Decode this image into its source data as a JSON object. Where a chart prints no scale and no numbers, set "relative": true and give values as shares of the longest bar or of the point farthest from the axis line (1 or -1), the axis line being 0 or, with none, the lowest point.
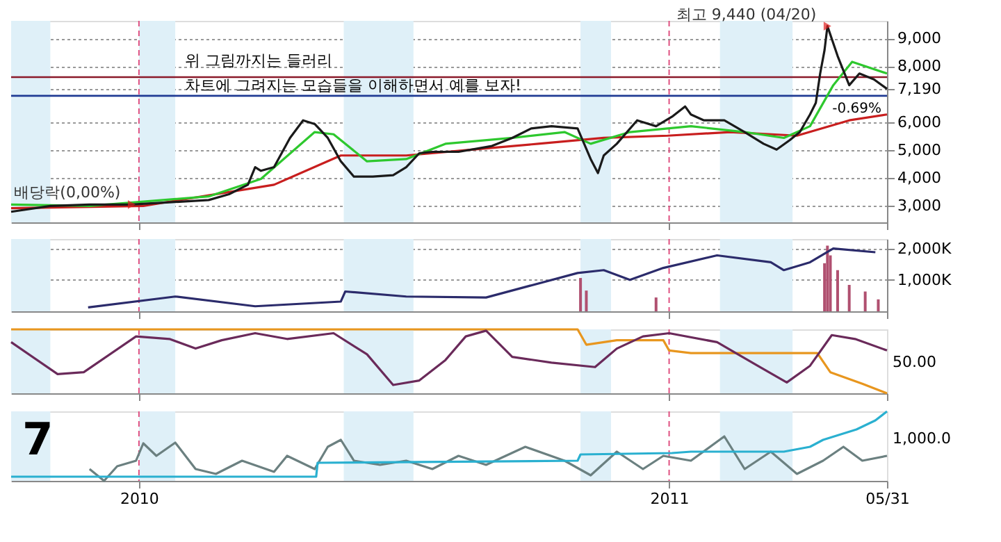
{
  "chart_data": [
    {
      "type": "line",
      "xlim": [
        "2009-10-05",
        "2011-05-31"
      ],
      "xticks": [
        {
          "value": "2010-01-01",
          "label": null
        },
        {
          "value": "2011-01-01",
          "label": null
        },
        {
          "value": "2011-05-31",
          "label": null
        }
      ],
      "ylim": [
        2400,
        9630
      ],
      "yticks": [
        {
          "value": 3000,
          "label": "3,000"
        },
        {
          "value": 4000,
          "label": "4,000"
        },
        {
          "value": 5000,
          "label": "5,000"
        },
        {
          "value": 6000,
          "label": "6,000"
        },
        {
          "value": 7190,
          "label": "7,190"
        },
        {
          "value": 8000,
          "label": "8,000"
        },
        {
          "value": 9000,
          "label": "9,000"
        }
      ],
      "grid": "y",
      "tick_labels": "y",
      "series": [
        {
          "color": "#c81e1e",
          "x": [
            "2009-10-05",
            "2010-01-04",
            "2010-04-04",
            "2010-05-20",
            "2010-07-04",
            "2010-08-18",
            "2010-10-03",
            "2010-11-17",
            "2010-12-31",
            "2011-02-12",
            "2011-03-30",
            "2011-05-05",
            "2011-05-31"
          ],
          "values": [
            2910,
            2990,
            3750,
            4800,
            4800,
            5010,
            5220,
            5430,
            5510,
            5640,
            5510,
            6060,
            6270
          ]
        },
        {
          "color": "#2ec82e",
          "x": [
            "2009-10-05",
            "2009-11-28",
            "2010-02-18",
            "2010-03-26",
            "2010-05-02",
            "2010-05-15",
            "2010-06-07",
            "2010-07-04",
            "2010-07-31",
            "2010-09-15",
            "2010-10-21",
            "2010-11-08",
            "2010-12-05",
            "2011-01-16",
            "2011-02-22",
            "2011-03-21",
            "2011-04-08",
            "2011-04-24",
            "2011-05-07",
            "2011-05-31"
          ],
          "values": [
            3040,
            2990,
            3330,
            3960,
            5640,
            5560,
            4590,
            4670,
            5220,
            5430,
            5640,
            5220,
            5640,
            5850,
            5640,
            5430,
            5850,
            7320,
            8160,
            7740
          ]
        },
        {
          "color": "#1a1a1a",
          "x": [
            "2009-10-05",
            "2009-11-01",
            "2009-11-28",
            "2009-12-26",
            "2010-01-22",
            "2010-02-18",
            "2010-03-04",
            "2010-03-17",
            "2010-03-22",
            "2010-03-26",
            "2010-04-04",
            "2010-04-15",
            "2010-04-24",
            "2010-05-02",
            "2010-05-11",
            "2010-05-20",
            "2010-05-29",
            "2010-06-11",
            "2010-06-25",
            "2010-07-04",
            "2010-07-13",
            "2010-07-22",
            "2010-08-09",
            "2010-09-01",
            "2010-09-15",
            "2010-09-28",
            "2010-10-12",
            "2010-10-30",
            "2010-11-08",
            "2010-11-13",
            "2010-11-17",
            "2010-11-26",
            "2010-12-10",
            "2010-12-23",
            "2011-01-03",
            "2011-01-12",
            "2011-01-16",
            "2011-01-25",
            "2011-02-08",
            "2011-02-22",
            "2011-03-07",
            "2011-03-16",
            "2011-03-25",
            "2011-04-01",
            "2011-04-08",
            "2011-04-12",
            "2011-04-15",
            "2011-04-18",
            "2011-04-20",
            "2011-04-27",
            "2011-05-05",
            "2011-05-12",
            "2011-05-22",
            "2011-05-31"
          ],
          "values": [
            2780,
            2990,
            3040,
            3040,
            3120,
            3200,
            3410,
            3750,
            4380,
            4250,
            4380,
            5430,
            6060,
            5930,
            5430,
            4590,
            4040,
            4040,
            4090,
            4380,
            4880,
            4930,
            4930,
            5140,
            5430,
            5770,
            5850,
            5770,
            4670,
            4170,
            4800,
            5220,
            6060,
            5850,
            6190,
            6560,
            6270,
            6060,
            6060,
            5640,
            5220,
            5010,
            5350,
            5640,
            6270,
            6690,
            7740,
            8580,
            9440,
            8370,
            7320,
            7740,
            7530,
            7190
          ]
        }
      ],
      "ref_lines": [
        {
          "axis": "y",
          "value": 7610,
          "color": "#8b1a2a"
        },
        {
          "axis": "y",
          "value": 6940,
          "color": "#1f3a93"
        },
        {
          "axis": "x",
          "value": "2010-01-01",
          "color": "#e05080",
          "line_style": "dashed"
        },
        {
          "axis": "x",
          "value": "2011-01-01",
          "color": "#e05080",
          "line_style": "dashed"
        }
      ],
      "bands": [
        {
          "axis": "x",
          "from": "2009-10-05",
          "to": "2009-11-01",
          "color": "#dff0f8"
        },
        {
          "axis": "x",
          "from": "2010-01-01",
          "to": "2010-01-26",
          "color": "#dff0f8"
        },
        {
          "axis": "x",
          "from": "2010-05-22",
          "to": "2010-07-09",
          "color": "#dff0f8"
        },
        {
          "axis": "x",
          "from": "2010-11-01",
          "to": "2010-11-22",
          "color": "#dff0f8"
        },
        {
          "axis": "x",
          "from": "2011-02-05",
          "to": "2011-03-27",
          "color": "#dff0f8"
        }
      ],
      "annotations": [
        "위 그림까지는 들러리\n차트에 그려지는 모습들을 이해하면서 예를 보자!",
        {
          "text": "최고 9,440 (04/20)",
          "x": "2011-04-20",
          "y": 9440
        },
        {
          "text": "배당락(0,00%)",
          "x": "2009-12-27",
          "y": 3040
        },
        "-0.69%"
      ]
    },
    {
      "type": "bar",
      "xlim": [
        "2009-10-05",
        "2011-05-31"
      ],
      "xticks": [
        {
          "value": "2010-01-01",
          "label": null
        },
        {
          "value": "2011-01-01",
          "label": null
        },
        {
          "value": "2011-05-31",
          "label": null
        }
      ],
      "ylim": [
        0,
        2300
      ],
      "yticks": [
        {
          "value": 1000,
          "label": "1,000K"
        },
        {
          "value": 2000,
          "label": "2,000K"
        }
      ],
      "grid": "y",
      "tick_labels": "y",
      "series": [
        {
          "color": "#b05070",
          "x": [
            "2010-11-01",
            "2010-11-05",
            "2010-12-23",
            "2011-04-18",
            "2011-04-20",
            "2011-04-22",
            "2011-04-27",
            "2011-05-05",
            "2011-05-16",
            "2011-05-25"
          ],
          "values": [
            1060,
            660,
            440,
            1530,
            2090,
            1780,
            1310,
            840,
            630,
            380
          ]
        },
        {
          "type": "line",
          "color": "#2b2b6b",
          "x": [
            "2009-11-27",
            "2010-01-26",
            "2010-03-22",
            "2010-05-20",
            "2010-05-23",
            "2010-07-04",
            "2010-08-28",
            "2010-10-30",
            "2010-11-17",
            "2010-12-05",
            "2010-12-28",
            "2011-02-03",
            "2011-03-12",
            "2011-03-21",
            "2011-04-08",
            "2011-04-24",
            "2011-05-23"
          ],
          "values": [
            125,
            470,
            160,
            310,
            630,
            470,
            440,
            1220,
            1310,
            1000,
            1380,
            1780,
            1560,
            1310,
            1560,
            2000,
            1880
          ]
        }
      ],
      "ref_lines": [
        {
          "axis": "x",
          "value": "2010-01-01",
          "color": "#e05080",
          "line_style": "dashed"
        },
        {
          "axis": "x",
          "value": "2011-01-01",
          "color": "#e05080",
          "line_style": "dashed"
        }
      ],
      "bands": [
        {
          "axis": "x",
          "from": "2009-10-05",
          "to": "2009-11-01",
          "color": "#dff0f8"
        },
        {
          "axis": "x",
          "from": "2010-01-01",
          "to": "2010-01-26",
          "color": "#dff0f8"
        },
        {
          "axis": "x",
          "from": "2010-05-22",
          "to": "2010-07-09",
          "color": "#dff0f8"
        },
        {
          "axis": "x",
          "from": "2010-11-01",
          "to": "2010-11-22",
          "color": "#dff0f8"
        },
        {
          "axis": "x",
          "from": "2011-02-05",
          "to": "2011-03-27",
          "color": "#dff0f8"
        }
      ]
    },
    {
      "type": "line",
      "relative": true,
      "xlim": [
        "2009-10-05",
        "2011-05-31"
      ],
      "xticks": [
        {
          "value": "2010-01-01",
          "label": null
        },
        {
          "value": "2011-01-01",
          "label": null
        },
        {
          "value": "2011-05-31",
          "label": null
        }
      ],
      "tick_labels": false,
      "series": [
        {
          "color": "#e8961e",
          "x": [
            "2009-10-05",
            "2010-10-30",
            "2010-11-05",
            "2010-11-26",
            "2010-12-28",
            "2011-01-01",
            "2011-01-16",
            "2011-04-13",
            "2011-04-22",
            "2011-05-14",
            "2011-05-31"
          ],
          "values": [
            1.0,
            1.0,
            0.76,
            0.83,
            0.83,
            0.67,
            0.63,
            0.63,
            0.33,
            0.15,
            0
          ]
        },
        {
          "color": "#6a2a5a",
          "x": [
            "2009-10-05",
            "2009-11-06",
            "2009-11-24",
            "2009-12-30",
            "2010-01-22",
            "2010-02-09",
            "2010-02-27",
            "2010-03-22",
            "2010-04-13",
            "2010-05-15",
            "2010-06-07",
            "2010-06-25",
            "2010-07-13",
            "2010-07-31",
            "2010-08-14",
            "2010-08-28",
            "2010-09-15",
            "2010-10-12",
            "2010-11-11",
            "2010-11-26",
            "2010-12-14",
            "2011-01-01",
            "2011-02-03",
            "2011-03-03",
            "2011-03-23",
            "2011-04-08",
            "2011-04-23",
            "2011-05-09",
            "2011-05-31"
          ],
          "values": [
            0.8,
            0.3,
            0.33,
            0.89,
            0.85,
            0.7,
            0.83,
            0.94,
            0.85,
            0.94,
            0.61,
            0.13,
            0.2,
            0.52,
            0.89,
            0.98,
            0.57,
            0.48,
            0.41,
            0.7,
            0.89,
            0.94,
            0.8,
            0.43,
            0.17,
            0.43,
            0.91,
            0.85,
            0.67
          ]
        }
      ],
      "ref_lines": [
        {
          "axis": "x",
          "value": "2010-01-01",
          "color": "#e05080",
          "line_style": "dashed"
        },
        {
          "axis": "x",
          "value": "2011-01-01",
          "color": "#e05080",
          "line_style": "dashed"
        }
      ],
      "bands": [
        {
          "axis": "x",
          "from": "2009-10-05",
          "to": "2009-11-01",
          "color": "#dff0f8"
        },
        {
          "axis": "x",
          "from": "2010-01-01",
          "to": "2010-01-26",
          "color": "#dff0f8"
        },
        {
          "axis": "x",
          "from": "2010-05-22",
          "to": "2010-07-09",
          "color": "#dff0f8"
        },
        {
          "axis": "x",
          "from": "2010-11-01",
          "to": "2010-11-22",
          "color": "#dff0f8"
        },
        {
          "axis": "x",
          "from": "2011-02-05",
          "to": "2011-03-27",
          "color": "#dff0f8"
        }
      ],
      "annotations": [
        "50.00"
      ]
    },
    {
      "type": "line",
      "relative": true,
      "xlim": [
        "2009-10-05",
        "2011-05-31"
      ],
      "xticks": [
        {
          "value": "2010-01-01",
          "label": "2010"
        },
        {
          "value": "2011-01-01",
          "label": "2011"
        },
        {
          "value": "2011-05-31",
          "label": "05/31"
        }
      ],
      "tick_labels": "x",
      "series": [
        {
          "color": "#6b8080",
          "x": [
            "2009-11-28",
            "2009-12-08",
            "2009-12-17",
            "2009-12-30",
            "2010-01-04",
            "2010-01-13",
            "2010-01-26",
            "2010-02-09",
            "2010-02-23",
            "2010-03-13",
            "2010-04-04",
            "2010-04-13",
            "2010-05-02",
            "2010-05-11",
            "2010-05-20",
            "2010-05-29",
            "2010-06-16",
            "2010-07-04",
            "2010-07-22",
            "2010-08-09",
            "2010-08-28",
            "2010-09-24",
            "2010-10-21",
            "2010-11-08",
            "2010-11-26",
            "2010-12-14",
            "2010-12-28",
            "2011-01-16",
            "2011-02-08",
            "2011-02-22",
            "2011-03-12",
            "2011-03-30",
            "2011-04-17",
            "2011-05-01",
            "2011-05-14",
            "2011-05-31"
          ],
          "values": [
            0.17,
            0,
            0.21,
            0.29,
            0.54,
            0.36,
            0.55,
            0.17,
            0.1,
            0.29,
            0.13,
            0.36,
            0.17,
            0.49,
            0.59,
            0.29,
            0.23,
            0.29,
            0.17,
            0.36,
            0.23,
            0.49,
            0.29,
            0.08,
            0.42,
            0.17,
            0.36,
            0.29,
            0.64,
            0.17,
            0.42,
            0.1,
            0.29,
            0.49,
            0.29,
            0.36
          ]
        },
        {
          "color": "#2ab0d0",
          "x": [
            "2009-10-05",
            "2010-05-03",
            "2010-05-04",
            "2010-10-30",
            "2010-11-01",
            "2011-01-03",
            "2011-01-16",
            "2011-03-21",
            "2011-04-08",
            "2011-04-17",
            "2011-05-10",
            "2011-05-23",
            "2011-05-31"
          ],
          "values": [
            0.06,
            0.06,
            0.26,
            0.29,
            0.38,
            0.4,
            0.42,
            0.42,
            0.49,
            0.59,
            0.74,
            0.87,
            1.0
          ]
        }
      ],
      "ref_lines": [
        {
          "axis": "x",
          "value": "2010-01-01",
          "color": "#e05080",
          "line_style": "dashed"
        },
        {
          "axis": "x",
          "value": "2011-01-01",
          "color": "#e05080",
          "line_style": "dashed"
        }
      ],
      "bands": [
        {
          "axis": "x",
          "from": "2009-10-05",
          "to": "2009-11-01",
          "color": "#dff0f8"
        },
        {
          "axis": "x",
          "from": "2010-01-01",
          "to": "2010-01-26",
          "color": "#dff0f8"
        },
        {
          "axis": "x",
          "from": "2010-05-22",
          "to": "2010-07-09",
          "color": "#dff0f8"
        },
        {
          "axis": "x",
          "from": "2010-11-01",
          "to": "2010-11-22",
          "color": "#dff0f8"
        },
        {
          "axis": "x",
          "from": "2011-02-05",
          "to": "2011-03-27",
          "color": "#dff0f8"
        }
      ],
      "annotations": [
        "1,000.0",
        "7"
      ]
    }
  ]
}
